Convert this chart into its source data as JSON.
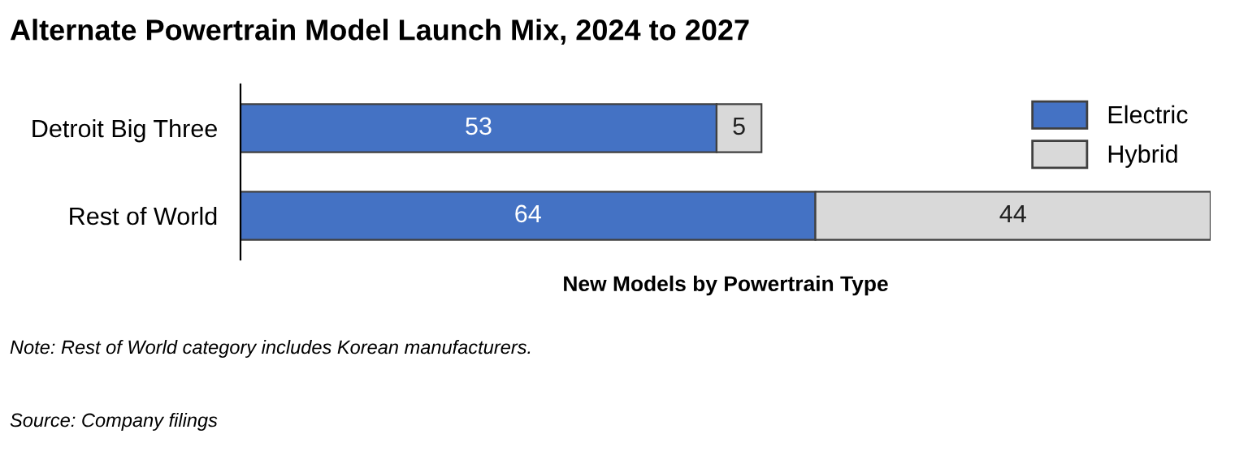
{
  "chart_data": {
    "type": "bar",
    "orientation": "horizontal",
    "stacked": true,
    "title": "Alternate Powertrain Model Launch Mix, 2024 to 2027",
    "xlabel": "New Models by Powertrain Type",
    "categories": [
      "Detroit Big Three",
      "Rest of World"
    ],
    "series": [
      {
        "name": "Electric",
        "color": "#4472c4",
        "values": [
          53,
          64
        ]
      },
      {
        "name": "Hybrid",
        "color": "#d9d9d9",
        "values": [
          5,
          44
        ]
      }
    ],
    "data_labels": true,
    "legend": "top right",
    "grid": false,
    "annotations": [
      "Note: Rest of World category includes Korean manufacturers.",
      "Source: Company filings"
    ]
  }
}
